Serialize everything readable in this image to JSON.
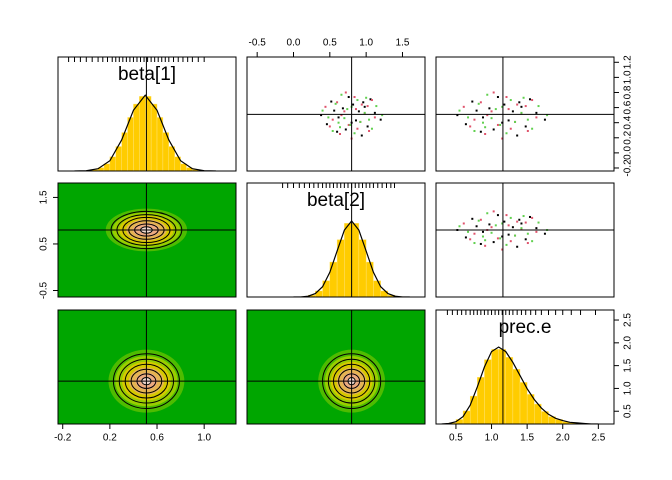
{
  "chart_data": [
    {
      "type": "histogram",
      "title": "beta[1]",
      "color": "#ffcc00",
      "xlim": [
        -0.24,
        1.27
      ],
      "ylim": [
        0,
        4.0
      ],
      "vline": 0.51,
      "bins": [
        0.0,
        0.05,
        0.1,
        0.15,
        0.2,
        0.25,
        0.3,
        0.35,
        0.4,
        0.45,
        0.5,
        0.55,
        0.6,
        0.65,
        0.7,
        0.75,
        0.8,
        0.85,
        0.9,
        0.95,
        1.0
      ],
      "values": [
        0.02,
        0.05,
        0.12,
        0.25,
        0.5,
        0.86,
        1.35,
        1.88,
        2.35,
        2.62,
        2.62,
        2.35,
        1.88,
        1.35,
        0.86,
        0.5,
        0.25,
        0.12,
        0.05,
        0.02
      ],
      "density": {
        "x": [
          -0.1,
          0.0,
          0.1,
          0.2,
          0.3,
          0.4,
          0.5,
          0.6,
          0.7,
          0.8,
          0.9,
          1.0,
          1.1
        ],
        "y": [
          0.0,
          0.01,
          0.08,
          0.36,
          1.09,
          2.13,
          2.66,
          2.13,
          1.09,
          0.36,
          0.08,
          0.01,
          0.0
        ]
      },
      "rug": [
        -0.15,
        -0.1,
        -0.05,
        0.0,
        0.05,
        0.1,
        0.14,
        0.18,
        0.22,
        0.25,
        0.28,
        0.31,
        0.34,
        0.37,
        0.4,
        0.43,
        0.46,
        0.49,
        0.52,
        0.55,
        0.58,
        0.61,
        0.64,
        0.67,
        0.7,
        0.74,
        0.78,
        0.82,
        0.86,
        0.9,
        0.95,
        1.0
      ]
    },
    {
      "type": "scatter",
      "xlim": [
        -0.64,
        1.81
      ],
      "ylim": [
        -0.24,
        1.27
      ],
      "vline": 0.8,
      "hline": 0.51,
      "xticks": [
        -0.5,
        {
          "value": 0,
          "label": "0.0"
        },
        0.5,
        {
          "value": 1,
          "label": "1.0"
        },
        1.5
      ],
      "series": [
        {
          "color": "#000000",
          "x": [
            0.86,
            0.56,
            0.96,
            0.72,
            1.12,
            0.62,
            0.82,
            0.46,
            1.02,
            0.9,
            0.76,
            1.2,
            0.52,
            0.94,
            0.68,
            1.06,
            0.38,
            0.8,
            0.98,
            0.6
          ],
          "y": [
            0.43,
            0.56,
            0.67,
            0.31,
            0.53,
            0.47,
            0.64,
            0.38,
            0.35,
            0.55,
            0.74,
            0.44,
            0.68,
            0.23,
            0.59,
            0.71,
            0.5,
            0.4,
            0.61,
            0.28
          ]
        },
        {
          "color": "#df536b",
          "x": [
            0.7,
            0.88,
            1.02,
            0.54,
            0.84,
            0.76,
            0.98,
            0.64,
            0.6,
            0.86,
            1.12,
            0.72,
            1.04,
            0.44,
            0.92,
            1.08,
            0.8,
            0.66,
            0.94,
            0.5
          ],
          "y": [
            0.55,
            0.32,
            0.62,
            0.44,
            0.74,
            0.37,
            0.52,
            0.25,
            0.67,
            0.58,
            0.47,
            0.8,
            0.29,
            0.61,
            0.41,
            0.7,
            0.19,
            0.5,
            0.64,
            0.35
          ]
        },
        {
          "color": "#61d04f",
          "x": [
            0.74,
            1.04,
            0.64,
            0.88,
            0.48,
            0.98,
            0.78,
            1.14,
            0.58,
            0.7,
            0.84,
            0.4,
            1.08,
            0.66,
            0.92,
            0.54,
            1.22,
            0.8,
            0.62,
            1.0
          ],
          "y": [
            0.58,
            0.44,
            0.34,
            0.7,
            0.47,
            0.53,
            0.37,
            0.62,
            0.65,
            0.46,
            0.26,
            0.56,
            0.32,
            0.77,
            0.41,
            0.29,
            0.5,
            0.61,
            0.4,
            0.73
          ]
        }
      ]
    },
    {
      "type": "scatter",
      "xlim": [
        0.22,
        2.72
      ],
      "ylim": [
        -0.24,
        1.27
      ],
      "vline": 1.16,
      "hline": 0.51,
      "yticks": [
        -0.2,
        {
          "value": 0,
          "label": "0.0"
        },
        0.2,
        0.4,
        0.6,
        0.8,
        {
          "value": 1,
          "label": "1.0"
        },
        1.2
      ],
      "series": [
        {
          "color": "#000000",
          "x": [
            1.24,
            0.79,
            1.39,
            1.03,
            1.63,
            0.88,
            1.18,
            0.64,
            1.48,
            1.3,
            1.09,
            1.75,
            0.73,
            1.36,
            0.97,
            1.54,
            0.52,
            1.15,
            1.42,
            0.85
          ],
          "y": [
            0.43,
            0.56,
            0.67,
            0.31,
            0.53,
            0.47,
            0.64,
            0.38,
            0.35,
            0.55,
            0.74,
            0.44,
            0.68,
            0.23,
            0.59,
            0.71,
            0.5,
            0.4,
            0.61,
            0.28
          ]
        },
        {
          "color": "#df536b",
          "x": [
            1.0,
            1.27,
            1.48,
            0.76,
            1.21,
            1.09,
            1.42,
            0.91,
            0.85,
            1.24,
            1.63,
            1.03,
            1.51,
            0.61,
            1.33,
            1.57,
            1.15,
            0.94,
            1.36,
            0.7
          ],
          "y": [
            0.55,
            0.32,
            0.62,
            0.44,
            0.74,
            0.37,
            0.52,
            0.25,
            0.67,
            0.58,
            0.47,
            0.8,
            0.29,
            0.61,
            0.41,
            0.7,
            0.19,
            0.5,
            0.64,
            0.35
          ]
        },
        {
          "color": "#61d04f",
          "x": [
            1.06,
            1.51,
            0.91,
            1.27,
            0.67,
            1.42,
            1.12,
            1.66,
            0.82,
            1.0,
            1.21,
            0.55,
            1.57,
            0.94,
            1.33,
            0.76,
            1.78,
            1.15,
            0.88,
            1.45
          ],
          "y": [
            0.58,
            0.44,
            0.34,
            0.7,
            0.47,
            0.53,
            0.37,
            0.62,
            0.65,
            0.46,
            0.26,
            0.56,
            0.32,
            0.77,
            0.41,
            0.29,
            0.5,
            0.61,
            0.4,
            0.73
          ]
        }
      ]
    },
    {
      "type": "contour",
      "background": "#00a600",
      "xlim": [
        -0.24,
        1.27
      ],
      "ylim": [
        -0.64,
        1.81
      ],
      "vline": 0.51,
      "hline": 0.8,
      "yticks": [
        -0.5,
        0.5,
        1.5
      ],
      "center": [
        0.51,
        0.8
      ],
      "colors": [
        "#5cbf00",
        "#a8d000",
        "#e0c800",
        "#e8b060",
        "#eda888",
        "#f2e4e0"
      ],
      "contours": [
        {
          "rx": 0.3,
          "ry": 0.4
        },
        {
          "rx": 0.25,
          "ry": 0.33
        },
        {
          "rx": 0.2,
          "ry": 0.27
        },
        {
          "rx": 0.15,
          "ry": 0.2
        },
        {
          "rx": 0.1,
          "ry": 0.13
        },
        {
          "rx": 0.05,
          "ry": 0.07
        }
      ]
    },
    {
      "type": "histogram",
      "title": "beta[2]",
      "color": "#ffcc00",
      "xlim": [
        -0.64,
        1.81
      ],
      "ylim": [
        0,
        3.0
      ],
      "vline": 0.8,
      "bins": [
        0.0,
        0.1,
        0.2,
        0.3,
        0.4,
        0.5,
        0.6,
        0.7,
        0.8,
        0.9,
        1.0,
        1.1,
        1.2,
        1.3,
        1.4,
        1.5,
        1.6
      ],
      "values": [
        0.0,
        0.01,
        0.05,
        0.16,
        0.43,
        0.92,
        1.51,
        1.94,
        1.94,
        1.51,
        0.92,
        0.43,
        0.16,
        0.05,
        0.01,
        0.0
      ],
      "density": {
        "x": [
          0.0,
          0.1,
          0.2,
          0.3,
          0.4,
          0.5,
          0.6,
          0.7,
          0.8,
          0.9,
          1.0,
          1.1,
          1.2,
          1.3,
          1.4,
          1.5,
          1.6
        ],
        "y": [
          0.0,
          0.0,
          0.02,
          0.09,
          0.27,
          0.65,
          1.21,
          1.76,
          2.0,
          1.76,
          1.21,
          0.65,
          0.27,
          0.09,
          0.02,
          0.0,
          0.0
        ]
      },
      "rug": [
        -0.15,
        -0.08,
        0.0,
        0.08,
        0.15,
        0.22,
        0.28,
        0.34,
        0.4,
        0.45,
        0.5,
        0.55,
        0.6,
        0.65,
        0.7,
        0.75,
        0.8,
        0.85,
        0.9,
        0.95,
        1.0,
        1.05,
        1.1,
        1.16,
        1.22,
        1.28,
        1.34,
        1.39
      ]
    },
    {
      "type": "scatter",
      "xlim": [
        0.22,
        2.72
      ],
      "ylim": [
        -0.64,
        1.81
      ],
      "vline": 1.16,
      "hline": 0.8,
      "series": [
        {
          "color": "#000000",
          "x": [
            1.24,
            0.79,
            1.39,
            1.03,
            1.63,
            0.88,
            1.18,
            0.64,
            1.48,
            1.3,
            1.09,
            1.75,
            0.73,
            1.36,
            0.97,
            1.54,
            0.52,
            1.15,
            1.42,
            0.85
          ],
          "y": [
            0.7,
            0.88,
            1.02,
            0.54,
            0.84,
            0.76,
            0.98,
            0.64,
            0.6,
            0.86,
            1.12,
            0.72,
            1.04,
            0.44,
            0.92,
            1.08,
            0.8,
            0.66,
            0.94,
            0.5
          ]
        },
        {
          "color": "#df536b",
          "x": [
            1.0,
            1.27,
            1.48,
            0.76,
            1.21,
            1.09,
            1.42,
            0.91,
            0.85,
            1.24,
            1.63,
            1.03,
            1.51,
            0.61,
            1.33,
            1.57,
            1.15,
            0.94,
            1.36,
            0.7
          ],
          "y": [
            0.86,
            0.56,
            0.96,
            0.72,
            1.12,
            0.62,
            0.82,
            0.46,
            1.02,
            0.9,
            0.76,
            1.2,
            0.52,
            0.94,
            0.68,
            1.06,
            0.38,
            0.8,
            0.98,
            0.6
          ]
        },
        {
          "color": "#61d04f",
          "x": [
            1.06,
            1.51,
            0.91,
            1.27,
            0.67,
            1.42,
            1.12,
            1.66,
            0.82,
            1.0,
            1.21,
            0.55,
            1.57,
            0.94,
            1.33,
            0.76,
            1.78,
            1.15,
            0.88,
            1.45
          ],
          "y": [
            0.9,
            0.72,
            0.58,
            1.06,
            0.76,
            0.84,
            0.62,
            0.96,
            1.0,
            0.74,
            0.48,
            0.88,
            0.56,
            1.16,
            0.68,
            0.52,
            0.8,
            0.94,
            0.66,
            1.1
          ]
        }
      ]
    },
    {
      "type": "contour",
      "background": "#00a600",
      "xlim": [
        -0.24,
        1.27
      ],
      "ylim": [
        0.22,
        2.72
      ],
      "vline": 0.51,
      "hline": 1.16,
      "xticks": [
        -0.2,
        0.2,
        0.6,
        {
          "value": 1,
          "label": "1.0"
        }
      ],
      "center": [
        0.51,
        1.16
      ],
      "colors": [
        "#5cbf00",
        "#a8d000",
        "#e0c800",
        "#e8b060",
        "#eda888",
        "#f2e4e0"
      ],
      "contours": [
        {
          "rx": 0.28,
          "ry": 0.6
        },
        {
          "rx": 0.23,
          "ry": 0.48
        },
        {
          "rx": 0.18,
          "ry": 0.37
        },
        {
          "rx": 0.13,
          "ry": 0.26
        },
        {
          "rx": 0.08,
          "ry": 0.16
        },
        {
          "rx": 0.04,
          "ry": 0.08
        }
      ]
    },
    {
      "type": "contour",
      "background": "#00a600",
      "xlim": [
        -0.64,
        1.81
      ],
      "ylim": [
        0.22,
        2.72
      ],
      "vline": 0.8,
      "hline": 1.16,
      "center": [
        0.8,
        1.16
      ],
      "colors": [
        "#5cbf00",
        "#a8d000",
        "#e0c800",
        "#e8b060",
        "#eda888",
        "#f2e4e0"
      ],
      "contours": [
        {
          "rx": 0.4,
          "ry": 0.6
        },
        {
          "rx": 0.32,
          "ry": 0.48
        },
        {
          "rx": 0.25,
          "ry": 0.37
        },
        {
          "rx": 0.18,
          "ry": 0.26
        },
        {
          "rx": 0.11,
          "ry": 0.16
        },
        {
          "rx": 0.05,
          "ry": 0.08
        }
      ]
    },
    {
      "type": "histogram",
      "title": "prec.e",
      "color": "#ffcc00",
      "xlim": [
        0.22,
        2.72
      ],
      "ylim": [
        0,
        2.0
      ],
      "vline": 1.16,
      "xticks": [
        0.5,
        {
          "value": 1,
          "label": "1.0"
        },
        1.5,
        {
          "value": 2,
          "label": "2.0"
        },
        2.5
      ],
      "yticks": [
        0.5,
        {
          "value": 1,
          "label": "1.0"
        },
        1.5,
        {
          "value": 2,
          "label": "2.0"
        },
        2.5
      ],
      "yticks_lim": [
        0.22,
        2.72
      ],
      "bins": [
        0.4,
        0.5,
        0.6,
        0.7,
        0.8,
        0.9,
        1.0,
        1.1,
        1.2,
        1.3,
        1.4,
        1.5,
        1.6,
        1.7,
        1.8,
        1.9,
        2.0,
        2.1,
        2.2,
        2.3
      ],
      "values": [
        0.02,
        0.08,
        0.23,
        0.49,
        0.82,
        1.13,
        1.31,
        1.31,
        1.17,
        0.96,
        0.73,
        0.52,
        0.35,
        0.22,
        0.13,
        0.08,
        0.04,
        0.02,
        0.01
      ],
      "density": {
        "x": [
          0.3,
          0.4,
          0.5,
          0.6,
          0.7,
          0.8,
          0.9,
          1.0,
          1.1,
          1.2,
          1.3,
          1.4,
          1.5,
          1.6,
          1.7,
          1.8,
          1.9,
          2.0,
          2.1,
          2.2,
          2.3,
          2.4,
          2.5
        ],
        "y": [
          0.0,
          0.01,
          0.04,
          0.13,
          0.33,
          0.65,
          1.0,
          1.27,
          1.35,
          1.27,
          1.08,
          0.85,
          0.62,
          0.43,
          0.28,
          0.17,
          0.1,
          0.06,
          0.03,
          0.02,
          0.01,
          0.0,
          0.0
        ]
      },
      "rug": [
        0.38,
        0.45,
        0.52,
        0.58,
        0.64,
        0.7,
        0.75,
        0.8,
        0.85,
        0.9,
        0.95,
        1.0,
        1.05,
        1.1,
        1.15,
        1.2,
        1.25,
        1.3,
        1.36,
        1.42,
        1.48,
        1.55,
        1.62,
        1.7,
        1.8,
        1.9,
        2.0,
        2.12,
        2.25,
        2.46
      ]
    }
  ]
}
